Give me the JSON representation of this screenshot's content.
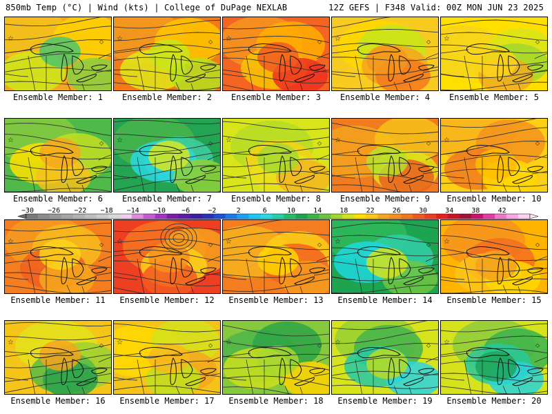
{
  "header": {
    "left": "850mb Temp (°C) | Wind (kts) | College of DuPage NEXLAB",
    "right": "12Z GEFS | F348 Valid: 00Z MON JUN 23 2025"
  },
  "member_prefix": "Ensemble Member:",
  "members": [
    {
      "label": "Ensemble Member: 1",
      "n": 1,
      "colors": [
        "#f3a623",
        "#f2c21a",
        "#ffd200",
        "#cde91a",
        "#88d040",
        "#4ec66c"
      ]
    },
    {
      "label": "Ensemble Member: 2",
      "n": 2,
      "colors": [
        "#f27a18",
        "#f39b1f",
        "#ffc600",
        "#e0e71a",
        "#b6e21f",
        "#c9e51b"
      ]
    },
    {
      "label": "Ensemble Member: 3",
      "n": 3,
      "colors": [
        "#f46523",
        "#f5951f",
        "#ffae00",
        "#f8c400",
        "#ee3021",
        "#f15b22"
      ]
    },
    {
      "label": "Ensemble Member: 4",
      "n": 4,
      "colors": [
        "#f7cb1f",
        "#ffd800",
        "#c7e51d",
        "#f7a420",
        "#f57a1f",
        "#f39820"
      ]
    },
    {
      "label": "Ensemble Member: 5",
      "n": 5,
      "colors": [
        "#ffdf00",
        "#f6d31c",
        "#d8e519",
        "#a3d82b",
        "#f1ac22",
        "#fbd31a"
      ]
    },
    {
      "label": "Ensemble Member: 6",
      "n": 6,
      "colors": [
        "#4fb949",
        "#85c93f",
        "#c2df22",
        "#ffe100",
        "#f6c01c",
        "#f5a71e"
      ]
    },
    {
      "label": "Ensemble Member: 7",
      "n": 7,
      "colors": [
        "#22a453",
        "#47b54b",
        "#3fcfa4",
        "#2ad8e0",
        "#8fd139",
        "#d8e61e"
      ]
    },
    {
      "label": "Ensemble Member: 8",
      "n": 8,
      "colors": [
        "#d9e51b",
        "#b5dc24",
        "#f4d21a",
        "#e9e21c",
        "#f2b61f",
        "#a6d82f"
      ]
    },
    {
      "label": "Ensemble Member: 9",
      "n": 9,
      "colors": [
        "#f17b1f",
        "#f4a21d",
        "#f6c31a",
        "#dbe31b",
        "#eb601f",
        "#b9df2a"
      ]
    },
    {
      "label": "Ensemble Member: 10",
      "n": 10,
      "colors": [
        "#fbcf15",
        "#f7b41c",
        "#f5931f",
        "#f07a1f",
        "#ffd900",
        "#ffbd00"
      ]
    },
    {
      "label": "Ensemble Member: 11",
      "n": 11,
      "colors": [
        "#f47d1f",
        "#f39a20",
        "#f6bc1b",
        "#ef5f21",
        "#f6a81d",
        "#fbd41a"
      ]
    },
    {
      "label": "Ensemble Member: 12",
      "n": 12,
      "colors": [
        "#ee3f22",
        "#f47520",
        "#f6a21d",
        "#fbd01a",
        "#f25a21",
        "#f99120"
      ]
    },
    {
      "label": "Ensemble Member: 13",
      "n": 13,
      "colors": [
        "#f37d1f",
        "#f6b11d",
        "#fbcf1a",
        "#f26321",
        "#f49b1f",
        "#ffd600"
      ]
    },
    {
      "label": "Ensemble Member: 14",
      "n": 14,
      "colors": [
        "#1ca451",
        "#2fb95a",
        "#31cfa8",
        "#1fd8df",
        "#6fc543",
        "#d2e31c"
      ]
    },
    {
      "label": "Ensemble Member: 15",
      "n": 15,
      "colors": [
        "#ffb400",
        "#f7931f",
        "#f36e20",
        "#fbc61a",
        "#ffd800",
        "#f5a21e"
      ]
    },
    {
      "label": "Ensemble Member: 16",
      "n": 16,
      "colors": [
        "#f6c51a",
        "#e3e11c",
        "#9bd232",
        "#57ba47",
        "#2ba34d",
        "#f4a51e"
      ]
    },
    {
      "label": "Ensemble Member: 17",
      "n": 17,
      "colors": [
        "#f5c41b",
        "#ffd900",
        "#d4e21c",
        "#f3a71e",
        "#bfe021",
        "#f8ba1c"
      ]
    },
    {
      "label": "Ensemble Member: 18",
      "n": 18,
      "colors": [
        "#86c93f",
        "#4db549",
        "#2ea447",
        "#cbe01d",
        "#ffd400",
        "#a8d830"
      ]
    },
    {
      "label": "Ensemble Member: 19",
      "n": 19,
      "colors": [
        "#d8e41b",
        "#95d034",
        "#44b34c",
        "#28c9a4",
        "#2bd5e0",
        "#b8dc26"
      ]
    },
    {
      "label": "Ensemble Member: 20",
      "n": 20,
      "colors": [
        "#d5e21c",
        "#8fcd3c",
        "#3ab44f",
        "#2bc89a",
        "#28d4dc",
        "#1da45a"
      ]
    }
  ],
  "colorbar": {
    "ticks": [
      "-30",
      "-26",
      "-22",
      "-18",
      "-14",
      "-10",
      "-6",
      "-2",
      "2",
      "6",
      "10",
      "14",
      "18",
      "22",
      "26",
      "30",
      "34",
      "38",
      "42"
    ],
    "colors": [
      "#7a7a7a",
      "#8c8c8c",
      "#999999",
      "#a6a6a6",
      "#b3b3b3",
      "#bfbfbf",
      "#cccccc",
      "#d9d9d9",
      "#f0d0f0",
      "#e08ce0",
      "#c85ad2",
      "#a632c8",
      "#7a1ea8",
      "#5a1ea0",
      "#3a1ea0",
      "#2a32b4",
      "#1e50d2",
      "#1e78e6",
      "#1ea0f0",
      "#1ec8f5",
      "#28d8e6",
      "#28cfa8",
      "#22be6e",
      "#1ea450",
      "#3cb44a",
      "#6ec43e",
      "#a2d630",
      "#d2e41e",
      "#ffe000",
      "#fcc81a",
      "#f6a81e",
      "#f39020",
      "#f0781e",
      "#ee5a22",
      "#ec3c22",
      "#e61e1e",
      "#c81428",
      "#a0143c",
      "#c8146e",
      "#e03ca0",
      "#f078c8",
      "#f8a8e0",
      "#fcd2f0"
    ]
  }
}
